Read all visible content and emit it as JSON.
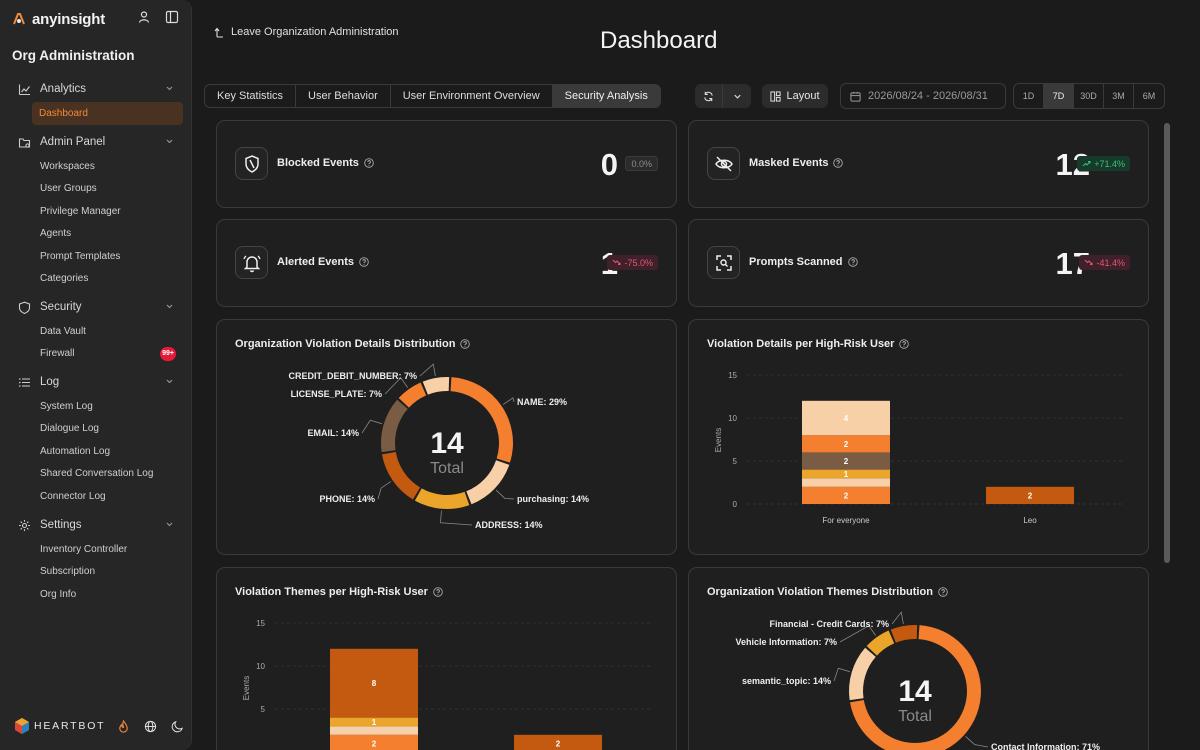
{
  "sidebar": {
    "brand": "anyinsight",
    "org_title": "Org Administration",
    "groups": [
      {
        "label": "Analytics",
        "icon": "chart-line-icon",
        "items": [
          {
            "label": "Dashboard",
            "active": true
          }
        ]
      },
      {
        "label": "Admin Panel",
        "icon": "folder-settings-icon",
        "items": [
          {
            "label": "Workspaces"
          },
          {
            "label": "User Groups"
          },
          {
            "label": "Privilege Manager"
          },
          {
            "label": "Agents"
          },
          {
            "label": "Prompt Templates"
          },
          {
            "label": "Categories"
          }
        ]
      },
      {
        "label": "Security",
        "icon": "shield-icon",
        "items": [
          {
            "label": "Data Vault"
          },
          {
            "label": "Firewall",
            "badge": "99+"
          }
        ]
      },
      {
        "label": "Log",
        "icon": "list-icon",
        "items": [
          {
            "label": "System Log"
          },
          {
            "label": "Dialogue Log"
          },
          {
            "label": "Automation Log"
          },
          {
            "label": "Shared Conversation Log"
          },
          {
            "label": "Connector Log"
          }
        ]
      },
      {
        "label": "Settings",
        "icon": "gear-icon",
        "items": [
          {
            "label": "Inventory Controller"
          },
          {
            "label": "Subscription"
          },
          {
            "label": "Org Info"
          }
        ]
      }
    ],
    "footer_brand": "HEARTBOT"
  },
  "header": {
    "leave_label": "Leave Organization Administration",
    "title": "Dashboard",
    "tabs": [
      {
        "label": "Key Statistics",
        "active": false
      },
      {
        "label": "User Behavior",
        "active": false
      },
      {
        "label": "User Environment Overview",
        "active": false
      },
      {
        "label": "Security Analysis",
        "active": true
      }
    ],
    "layout_label": "Layout",
    "date_range": "2026/08/24 - 2026/08/31",
    "periods": [
      {
        "label": "1D",
        "active": false
      },
      {
        "label": "7D",
        "active": true
      },
      {
        "label": "30D",
        "active": false
      },
      {
        "label": "3M",
        "active": false
      },
      {
        "label": "6M",
        "active": false
      }
    ]
  },
  "stats": {
    "blocked": {
      "label": "Blocked Events",
      "value": "0",
      "change": "0.0%",
      "trend": "neutral"
    },
    "masked": {
      "label": "Masked Events",
      "value": "12",
      "change": "+71.4%",
      "trend": "up"
    },
    "alerted": {
      "label": "Alerted Events",
      "value": "1",
      "change": "-75.0%",
      "trend": "down"
    },
    "scanned": {
      "label": "Prompts Scanned",
      "value": "17",
      "change": "-41.4%",
      "trend": "down"
    }
  },
  "colors": {
    "orange": "#f47f2e",
    "orange_dark": "#c45a10",
    "brown": "#7a5c45",
    "peach": "#f8d0a8",
    "amber": "#eba52b",
    "accent": "#f08a3c"
  },
  "chart_data": [
    {
      "type": "pie",
      "title": "Organization Violation Details Distribution",
      "center_value": "14",
      "center_label": "Total",
      "slices": [
        {
          "label": "NAME: 29%",
          "value": 29,
          "color": "#f47f2e"
        },
        {
          "label": "purchasing: 14%",
          "value": 14,
          "color": "#f8d0a8"
        },
        {
          "label": "ADDRESS: 14%",
          "value": 14,
          "color": "#eba52b"
        },
        {
          "label": "PHONE: 14%",
          "value": 14,
          "color": "#c45a10"
        },
        {
          "label": "EMAIL: 14%",
          "value": 14,
          "color": "#7a5c45"
        },
        {
          "label": "LICENSE_PLATE: 7%",
          "value": 7,
          "color": "#f47f2e"
        },
        {
          "label": "CREDIT_DEBIT_NUMBER: 7%",
          "value": 7,
          "color": "#f8d0a8"
        }
      ]
    },
    {
      "type": "bar",
      "title": "Violation Details per High-Risk User",
      "ylabel": "Events",
      "ylim": [
        0,
        15
      ],
      "yticks": [
        "0",
        "5",
        "10",
        "15"
      ],
      "categories": [
        "For everyone",
        "Leo"
      ],
      "stacks": [
        [
          {
            "value": 2,
            "label": "2",
            "color": "#f47f2e"
          },
          {
            "value": 1,
            "label": "",
            "color": "#f8d0a8"
          },
          {
            "value": 1,
            "label": "1",
            "color": "#eba52b"
          },
          {
            "value": 2,
            "label": "2",
            "color": "#7a5c45"
          },
          {
            "value": 2,
            "label": "2",
            "color": "#f47f2e"
          },
          {
            "value": 4,
            "label": "4",
            "color": "#f8d0a8"
          }
        ],
        [
          {
            "value": 2,
            "label": "2",
            "color": "#c45a10"
          }
        ]
      ]
    },
    {
      "type": "bar",
      "title": "Violation Themes per High-Risk User",
      "ylabel": "Events",
      "ylim": [
        0,
        15
      ],
      "yticks": [
        "5",
        "10",
        "15"
      ],
      "categories": [],
      "stacks": [
        [
          {
            "value": 2,
            "label": "2",
            "color": "#f47f2e"
          },
          {
            "value": 1,
            "label": "",
            "color": "#f8d0a8"
          },
          {
            "value": 1,
            "label": "1",
            "color": "#eba52b"
          },
          {
            "value": 8,
            "label": "8",
            "color": "#c45a10"
          }
        ],
        [
          {
            "value": 2,
            "label": "2",
            "color": "#c45a10"
          }
        ]
      ]
    },
    {
      "type": "pie",
      "title": "Organization Violation Themes Distribution",
      "center_value": "14",
      "center_label": "Total",
      "slices": [
        {
          "label": "Contact Information: 71%",
          "value": 71,
          "color": "#f47f2e"
        },
        {
          "label": "semantic_topic: 14%",
          "value": 14,
          "color": "#f8d0a8"
        },
        {
          "label": "Vehicle Information: 7%",
          "value": 7,
          "color": "#eba52b"
        },
        {
          "label": "Financial - Credit Cards: 7%",
          "value": 7,
          "color": "#c45a10"
        }
      ]
    }
  ]
}
